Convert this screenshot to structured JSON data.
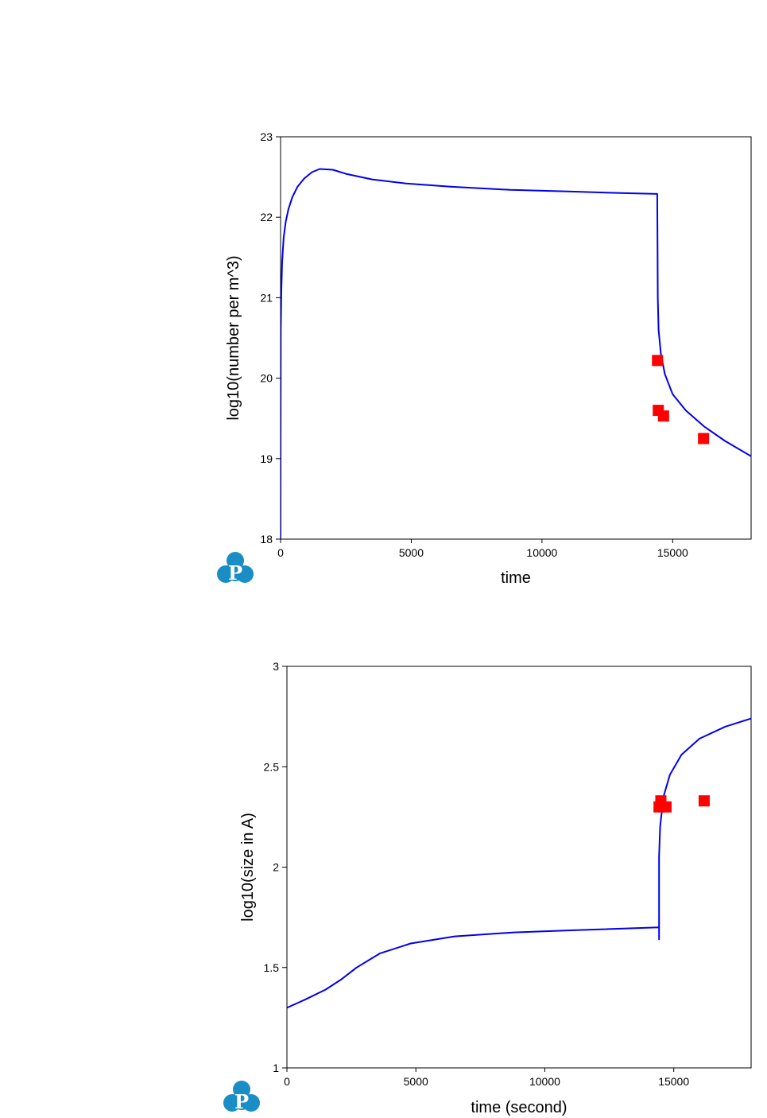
{
  "colors": {
    "line": "#0000ee",
    "marker": "#ff0000",
    "logo": "#1a8ec4"
  },
  "logo": {
    "letter": "P",
    "icon": "p-cloud-logo-icon"
  },
  "chart_data": [
    {
      "type": "line",
      "xlabel": "time",
      "ylabel": "log10(number per m^3)",
      "xlim": [
        0,
        18000
      ],
      "ylim": [
        18,
        23
      ],
      "xticks": [
        0,
        5000,
        10000,
        15000
      ],
      "yticks": [
        18,
        19,
        20,
        21,
        22,
        23
      ],
      "series": [
        {
          "type": "line",
          "points": [
            [
              0,
              18
            ],
            [
              2,
              19.3
            ],
            [
              10,
              20.6
            ],
            [
              30,
              21.1
            ],
            [
              60,
              21.45
            ],
            [
              120,
              21.75
            ],
            [
              200,
              21.95
            ],
            [
              300,
              22.1
            ],
            [
              450,
              22.25
            ],
            [
              650,
              22.38
            ],
            [
              900,
              22.48
            ],
            [
              1200,
              22.56
            ],
            [
              1500,
              22.6
            ],
            [
              2000,
              22.59
            ],
            [
              2500,
              22.54
            ],
            [
              3500,
              22.47
            ],
            [
              4800,
              22.42
            ],
            [
              6500,
              22.38
            ],
            [
              8800,
              22.34
            ],
            [
              11000,
              22.32
            ],
            [
              13000,
              22.3
            ],
            [
              14410,
              22.29
            ],
            [
              14420,
              21.6
            ],
            [
              14430,
              21.0
            ],
            [
              14460,
              20.6
            ],
            [
              14550,
              20.3
            ],
            [
              14700,
              20.05
            ],
            [
              15000,
              19.8
            ],
            [
              15500,
              19.6
            ],
            [
              16200,
              19.4
            ],
            [
              17000,
              19.22
            ],
            [
              18000,
              19.03
            ]
          ]
        },
        {
          "type": "scatter",
          "points": [
            [
              14420,
              20.22
            ],
            [
              14450,
              19.6
            ],
            [
              14650,
              19.53
            ],
            [
              16180,
              19.25
            ]
          ]
        }
      ]
    },
    {
      "type": "line",
      "xlabel": "time (second)",
      "ylabel": "log10(size in A)",
      "xlim": [
        0,
        18000
      ],
      "ylim": [
        1,
        3
      ],
      "xticks": [
        0,
        5000,
        10000,
        15000
      ],
      "yticks": [
        1,
        1.5,
        2,
        2.5,
        3
      ],
      "series": [
        {
          "type": "line",
          "points": [
            [
              0,
              1.3
            ],
            [
              700,
              1.34
            ],
            [
              1500,
              1.39
            ],
            [
              2100,
              1.44
            ],
            [
              2700,
              1.5
            ],
            [
              3600,
              1.57
            ],
            [
              4800,
              1.62
            ],
            [
              6500,
              1.655
            ],
            [
              8800,
              1.675
            ],
            [
              11000,
              1.685
            ],
            [
              14430,
              1.7
            ],
            [
              14430,
              1.64
            ],
            [
              14430,
              2.05
            ],
            [
              14470,
              2.2
            ],
            [
              14600,
              2.35
            ],
            [
              14850,
              2.46
            ],
            [
              15300,
              2.56
            ],
            [
              16000,
              2.64
            ],
            [
              17000,
              2.7
            ],
            [
              18000,
              2.74
            ]
          ]
        },
        {
          "type": "scatter",
          "points": [
            [
              14430,
              2.3
            ],
            [
              14500,
              2.33
            ],
            [
              14700,
              2.3
            ],
            [
              16180,
              2.33
            ]
          ]
        }
      ]
    }
  ]
}
